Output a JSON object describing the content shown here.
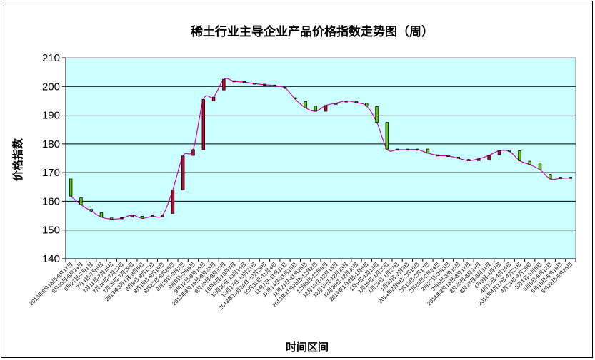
{
  "chart_data": {
    "type": "candlestick",
    "title": "稀土行业主导企业产品价格指数走势图（周）",
    "xlabel": "时间区间",
    "ylabel": "价格指数",
    "ylim": [
      140,
      210
    ],
    "yticks": [
      140,
      150,
      160,
      170,
      180,
      190,
      200,
      210
    ],
    "grid": true,
    "legend": "none",
    "colors": {
      "plot_bg": "#ccffff",
      "line": "#cc00cc",
      "up_box": "#66cc00",
      "down_box": "#cc0033"
    },
    "categories": [
      "2013年6月13日-6月17日",
      "6月20日-6月24日",
      "6月27日-7月1日",
      "7月4日-7月8日",
      "7月11日-7月15日",
      "7月18日-7月22日",
      "7月25日-7月29日",
      "2013年8月1日-8月5日",
      "8月8日-8月12日",
      "8月15日-8月19日",
      "8月22日-8月26日",
      "8月29日-9月2日",
      "9月5日-9月9日",
      "9月12日-9月16日",
      "2013年9月19日-9月23日",
      "9月26日-9月30日",
      "10月3日-10月7日",
      "10月10日-10月14日",
      "10月17日-10月21日",
      "2013年10月24日-10月28日",
      "10月31日-11月4日",
      "11月7日-11月11日",
      "11月14日-11月18日",
      "11月21日-11月25日",
      "2013年11月28日-12月2日",
      "12月5日-12月9日",
      "12月12日-12月16日",
      "12月19日-12月23日",
      "12月26日-12月30日",
      "2014年1月2日-1月6日",
      "1月9日-1月13日",
      "1月16日-1月20日",
      "1月23日-1月27日",
      "1月30日-2月3日",
      "2014年2月6日-2月10日",
      "2月13日-2月17日",
      "2月20日-2月24日",
      "2月27日-3月3日",
      "3月6日-3月10日",
      "2014年3月13日-3月17日",
      "3月20日-3月24日",
      "3月27日-3月31日",
      "4月3日-4月7日",
      "4月10日-4月14日",
      "2014年4月17日-4月21日",
      "4月24日-4月28日",
      "5月1日-5月5日",
      "5月8日-5月12日",
      "5月15日-5月19日",
      "5月22日-5月26日"
    ],
    "series": [
      {
        "values": [
          {
            "open": 167.8,
            "close": 161.8
          },
          {
            "open": 161.2,
            "close": 158.8
          },
          {
            "open": 157.2,
            "close": 156.6
          },
          {
            "open": 156.0,
            "close": 154.5
          },
          {
            "open": 154.2,
            "close": 153.8
          },
          {
            "open": 153.8,
            "close": 154.1
          },
          {
            "open": 154.5,
            "close": 155.2
          },
          {
            "open": 154.8,
            "close": 154.1
          },
          {
            "open": 154.5,
            "close": 154.8
          },
          {
            "open": 154.6,
            "close": 155.2
          },
          {
            "open": 155.8,
            "close": 164.0
          },
          {
            "open": 164.0,
            "close": 175.8
          },
          {
            "open": 176.0,
            "close": 178.0
          },
          {
            "open": 178.0,
            "close": 195.5
          },
          {
            "open": 195.0,
            "close": 196.3
          },
          {
            "open": 198.8,
            "close": 202.5
          },
          {
            "open": 201.8,
            "close": 201.8
          },
          {
            "open": 201.5,
            "close": 201.5
          },
          {
            "open": 201.0,
            "close": 201.0
          },
          {
            "open": 200.6,
            "close": 200.6
          },
          {
            "open": 200.3,
            "close": 200.3
          },
          {
            "open": 199.5,
            "close": 199.5
          },
          {
            "open": 195.9,
            "close": 195.6
          },
          {
            "open": 194.8,
            "close": 192.6
          },
          {
            "open": 193.2,
            "close": 191.4
          },
          {
            "open": 191.4,
            "close": 193.4
          },
          {
            "open": 193.8,
            "close": 194.2
          },
          {
            "open": 194.6,
            "close": 195.0
          },
          {
            "open": 194.8,
            "close": 194.4
          },
          {
            "open": 194.2,
            "close": 193.2
          },
          {
            "open": 193.0,
            "close": 187.5
          },
          {
            "open": 187.5,
            "close": 178.2
          },
          {
            "open": 178.0,
            "close": 178.0
          },
          {
            "open": 178.0,
            "close": 178.0
          },
          {
            "open": 178.0,
            "close": 178.0
          },
          {
            "open": 178.2,
            "close": 176.8
          },
          {
            "open": 176.0,
            "close": 176.0
          },
          {
            "open": 175.8,
            "close": 175.8
          },
          {
            "open": 175.4,
            "close": 175.0
          },
          {
            "open": 174.6,
            "close": 174.2
          },
          {
            "open": 174.2,
            "close": 174.8
          },
          {
            "open": 174.4,
            "close": 176.0
          },
          {
            "open": 176.2,
            "close": 177.6
          },
          {
            "open": 177.8,
            "close": 177.4
          },
          {
            "open": 177.6,
            "close": 174.2
          },
          {
            "open": 174.0,
            "close": 172.8
          },
          {
            "open": 173.4,
            "close": 171.0
          },
          {
            "open": 169.4,
            "close": 167.8
          },
          {
            "open": 168.2,
            "close": 168.0
          },
          {
            "open": 168.2,
            "close": 168.2
          }
        ]
      }
    ]
  }
}
